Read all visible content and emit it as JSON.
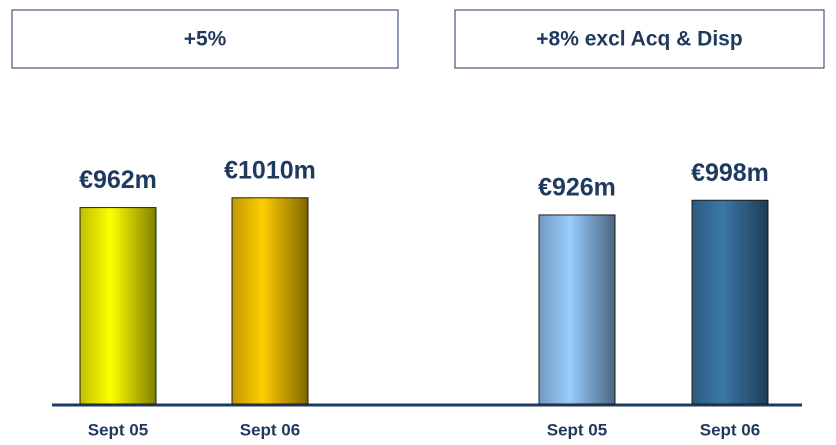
{
  "chart_data": [
    {
      "type": "bar",
      "title": "+5%",
      "categories": [
        "Sept 05",
        "Sept 06"
      ],
      "values": [
        962,
        1010
      ],
      "value_labels": [
        "€962m",
        "€1010m"
      ],
      "colors": [
        "#ffff00",
        "#ffcc00"
      ],
      "ylim": [
        0,
        1200
      ]
    },
    {
      "type": "bar",
      "title": "+8% excl Acq & Disp",
      "categories": [
        "Sept 05",
        "Sept 06"
      ],
      "values": [
        926,
        998
      ],
      "value_labels": [
        "€926m",
        "€998m"
      ],
      "colors": [
        "#99ccff",
        "#3a78a8"
      ],
      "ylim": [
        0,
        1200
      ]
    }
  ]
}
